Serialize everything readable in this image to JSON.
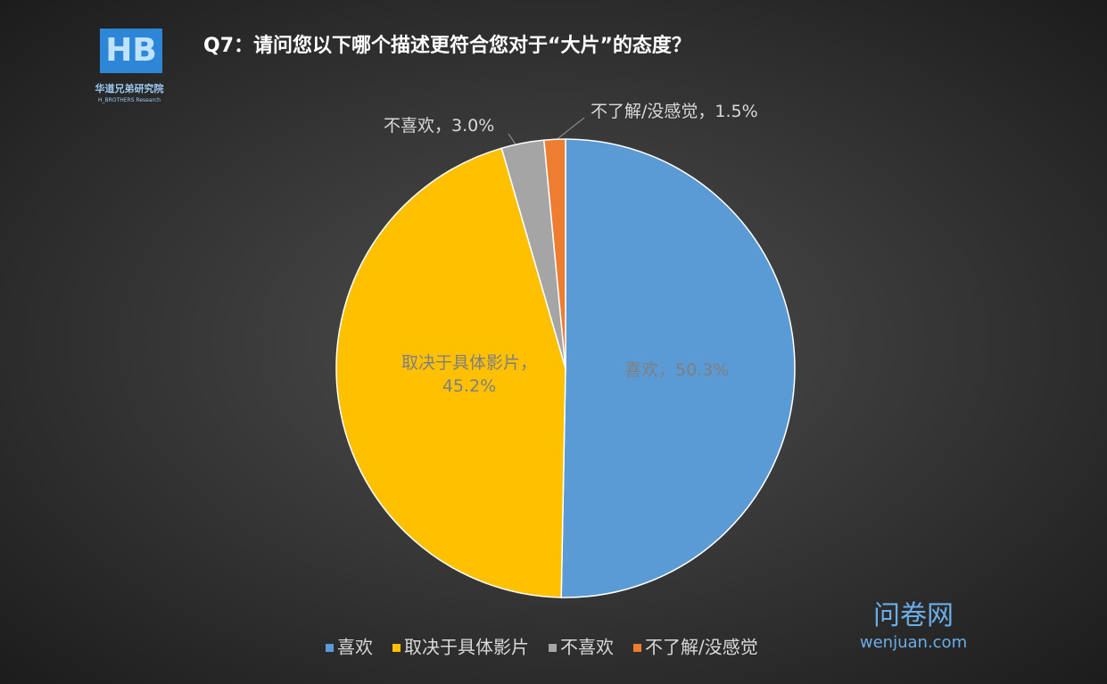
{
  "chart_data": {
    "type": "pie",
    "title": "Q7：请问您以下哪个描述更符合您对于“大片”的态度？",
    "categories": [
      "喜欢",
      "取决于具体影片",
      "不喜欢",
      "不了解/没感觉"
    ],
    "values": [
      50.3,
      45.2,
      3.0,
      1.5
    ],
    "value_labels": [
      "喜欢，50.3%",
      "取决于具体影片，45.2%",
      "不喜欢，3.0%",
      "不了解/没感觉，1.5%"
    ],
    "colors": [
      "#5b9bd5",
      "#ffc000",
      "#a5a5a5",
      "#ed7d31"
    ],
    "legend": "bottom"
  },
  "logo": {
    "mark": "HB",
    "name": "华道兄弟研究院",
    "subname": "H_BROTHERS Research"
  },
  "watermark": {
    "name": "问卷网",
    "url": "wenjuan.com"
  }
}
